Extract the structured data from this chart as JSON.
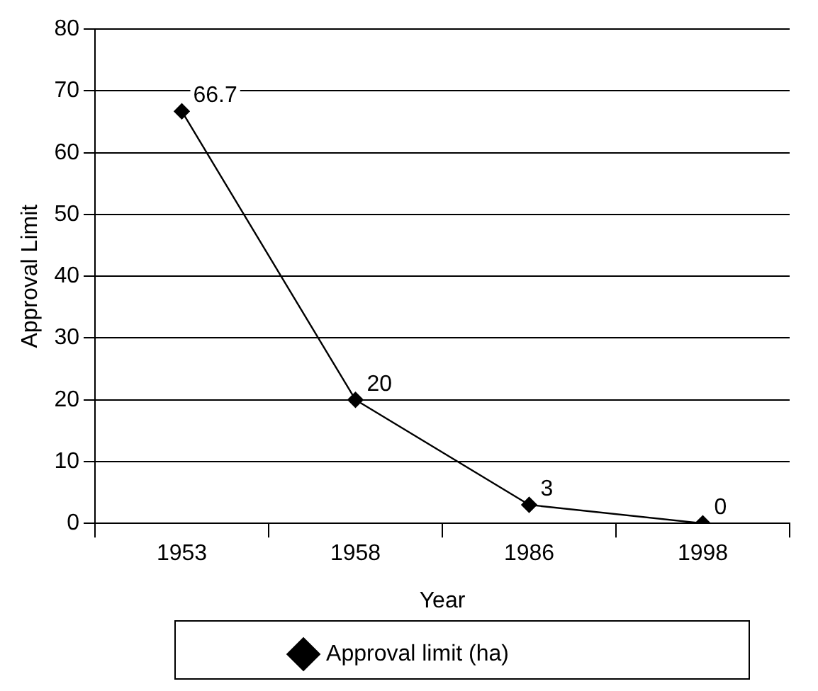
{
  "chart_data": {
    "type": "line",
    "xlabel": "Year",
    "ylabel": "Approval Limit",
    "categories": [
      "1953",
      "1958",
      "1986",
      "1998"
    ],
    "series": [
      {
        "name": "Approval limit (ha)",
        "color": "#000000",
        "values": [
          66.7,
          20,
          3,
          0
        ]
      }
    ],
    "ylim": [
      0,
      80
    ],
    "yticks": [
      0,
      10,
      20,
      30,
      40,
      50,
      60,
      70,
      80
    ],
    "grid": "y",
    "legend": "bottom",
    "marker": "diamond",
    "line_style": "solid",
    "data_labels": true
  }
}
